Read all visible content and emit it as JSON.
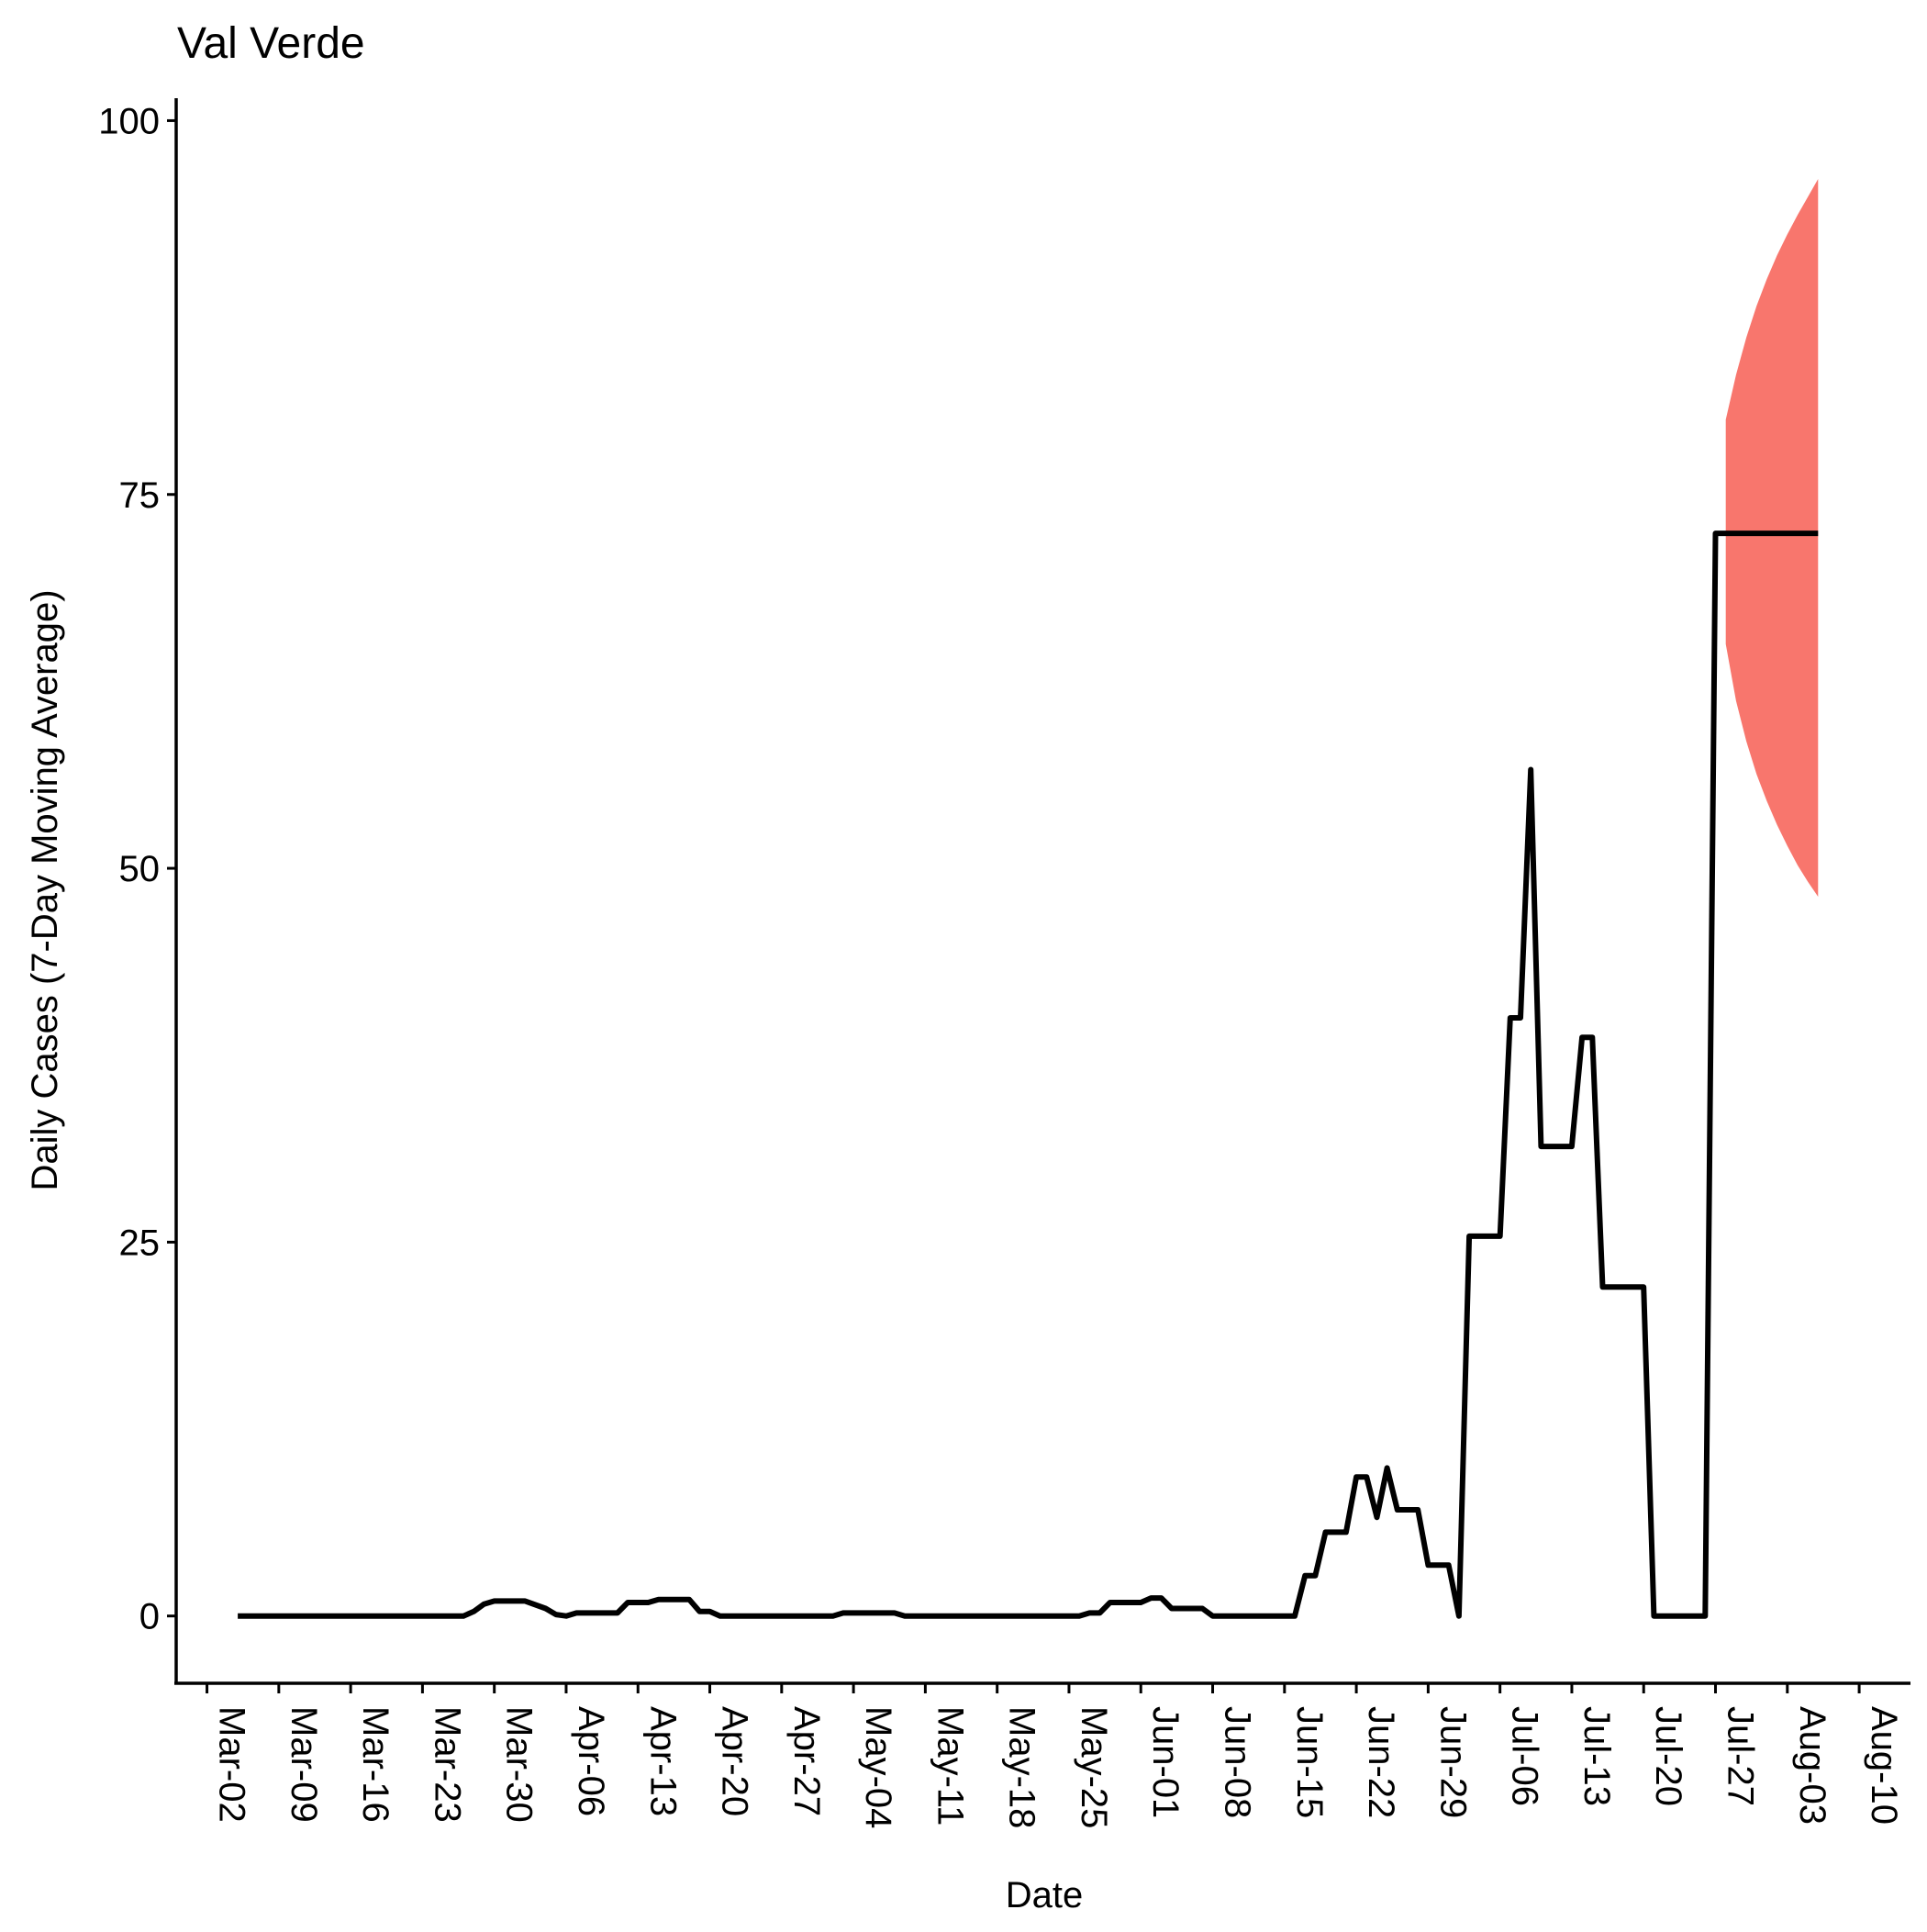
{
  "chart_data": {
    "type": "line",
    "title": "Val Verde",
    "xlabel": "Date",
    "ylabel": "Daily Cases (7-Day Moving Average)",
    "ylim": [
      -4.5,
      101.5
    ],
    "xlim": [
      "2020-02-28",
      "2020-08-15"
    ],
    "yticks": [
      0,
      25,
      50,
      75,
      100
    ],
    "xticks": [
      {
        "date": "2020-03-02",
        "label": "Mar-02"
      },
      {
        "date": "2020-03-09",
        "label": "Mar-09"
      },
      {
        "date": "2020-03-16",
        "label": "Mar-16"
      },
      {
        "date": "2020-03-23",
        "label": "Mar-23"
      },
      {
        "date": "2020-03-30",
        "label": "Mar-30"
      },
      {
        "date": "2020-04-06",
        "label": "Apr-06"
      },
      {
        "date": "2020-04-13",
        "label": "Apr-13"
      },
      {
        "date": "2020-04-20",
        "label": "Apr-20"
      },
      {
        "date": "2020-04-27",
        "label": "Apr-27"
      },
      {
        "date": "2020-05-04",
        "label": "May-04"
      },
      {
        "date": "2020-05-11",
        "label": "May-11"
      },
      {
        "date": "2020-05-18",
        "label": "May-18"
      },
      {
        "date": "2020-05-25",
        "label": "May-25"
      },
      {
        "date": "2020-06-01",
        "label": "Jun-01"
      },
      {
        "date": "2020-06-08",
        "label": "Jun-08"
      },
      {
        "date": "2020-06-15",
        "label": "Jun-15"
      },
      {
        "date": "2020-06-22",
        "label": "Jun-22"
      },
      {
        "date": "2020-06-29",
        "label": "Jun-29"
      },
      {
        "date": "2020-07-06",
        "label": "Jul-06"
      },
      {
        "date": "2020-07-13",
        "label": "Jul-13"
      },
      {
        "date": "2020-07-20",
        "label": "Jul-20"
      },
      {
        "date": "2020-07-27",
        "label": "Jul-27"
      },
      {
        "date": "2020-08-03",
        "label": "Aug-03"
      },
      {
        "date": "2020-08-10",
        "label": "Aug-10"
      }
    ],
    "grid": false,
    "legend": "none",
    "series": [
      {
        "color": "#000000",
        "points": [
          [
            "2020-03-05",
            0
          ],
          [
            "2020-03-27",
            0
          ],
          [
            "2020-03-28",
            0.3
          ],
          [
            "2020-03-29",
            0.8
          ],
          [
            "2020-03-30",
            1.0
          ],
          [
            "2020-04-02",
            1.0
          ],
          [
            "2020-04-04",
            0.5
          ],
          [
            "2020-04-05",
            0.1
          ],
          [
            "2020-04-06",
            0
          ],
          [
            "2020-04-07",
            0.2
          ],
          [
            "2020-04-08",
            0.2
          ],
          [
            "2020-04-11",
            0.2
          ],
          [
            "2020-04-12",
            0.9
          ],
          [
            "2020-04-14",
            0.9
          ],
          [
            "2020-04-15",
            1.1
          ],
          [
            "2020-04-18",
            1.1
          ],
          [
            "2020-04-19",
            0.3
          ],
          [
            "2020-04-20",
            0.3
          ],
          [
            "2020-04-21",
            0
          ],
          [
            "2020-05-02",
            0
          ],
          [
            "2020-05-03",
            0.2
          ],
          [
            "2020-05-08",
            0.2
          ],
          [
            "2020-05-09",
            0
          ],
          [
            "2020-05-26",
            0
          ],
          [
            "2020-05-27",
            0.2
          ],
          [
            "2020-05-28",
            0.2
          ],
          [
            "2020-05-29",
            0.9
          ],
          [
            "2020-06-01",
            0.9
          ],
          [
            "2020-06-02",
            1.2
          ],
          [
            "2020-06-03",
            1.2
          ],
          [
            "2020-06-04",
            0.5
          ],
          [
            "2020-06-07",
            0.5
          ],
          [
            "2020-06-08",
            0
          ],
          [
            "2020-06-16",
            0
          ],
          [
            "2020-06-17",
            2.7
          ],
          [
            "2020-06-18",
            2.7
          ],
          [
            "2020-06-19",
            5.6
          ],
          [
            "2020-06-21",
            5.6
          ],
          [
            "2020-06-22",
            9.3
          ],
          [
            "2020-06-23",
            9.3
          ],
          [
            "2020-06-24",
            6.6
          ],
          [
            "2020-06-25",
            9.9
          ],
          [
            "2020-06-26",
            7.1
          ],
          [
            "2020-06-28",
            7.1
          ],
          [
            "2020-06-29",
            3.4
          ],
          [
            "2020-07-01",
            3.4
          ],
          [
            "2020-07-02",
            0
          ],
          [
            "2020-07-03",
            25.4
          ],
          [
            "2020-07-06",
            25.4
          ],
          [
            "2020-07-07",
            40.0
          ],
          [
            "2020-07-08",
            40.0
          ],
          [
            "2020-07-09",
            56.6
          ],
          [
            "2020-07-10",
            31.4
          ],
          [
            "2020-07-13",
            31.4
          ],
          [
            "2020-07-14",
            38.7
          ],
          [
            "2020-07-15",
            38.7
          ],
          [
            "2020-07-16",
            22.0
          ],
          [
            "2020-07-20",
            22.0
          ],
          [
            "2020-07-21",
            0
          ],
          [
            "2020-07-26",
            0
          ],
          [
            "2020-07-27",
            72.4
          ],
          [
            "2020-08-06",
            72.4
          ]
        ]
      }
    ],
    "forecast_band": {
      "color": "#F8766D",
      "upper": [
        [
          "2020-07-28",
          80.0
        ],
        [
          "2020-07-29",
          83.0
        ],
        [
          "2020-07-30",
          85.5
        ],
        [
          "2020-07-31",
          87.6
        ],
        [
          "2020-08-01",
          89.4
        ],
        [
          "2020-08-02",
          91.0
        ],
        [
          "2020-08-03",
          92.4
        ],
        [
          "2020-08-04",
          93.7
        ],
        [
          "2020-08-05",
          94.9
        ],
        [
          "2020-08-06",
          96.1
        ]
      ],
      "lower": [
        [
          "2020-07-28",
          65.0
        ],
        [
          "2020-07-29",
          61.2
        ],
        [
          "2020-07-30",
          58.5
        ],
        [
          "2020-07-31",
          56.3
        ],
        [
          "2020-08-01",
          54.5
        ],
        [
          "2020-08-02",
          52.9
        ],
        [
          "2020-08-03",
          51.5
        ],
        [
          "2020-08-04",
          50.2
        ],
        [
          "2020-08-05",
          49.1
        ],
        [
          "2020-08-06",
          48.1
        ]
      ]
    }
  }
}
